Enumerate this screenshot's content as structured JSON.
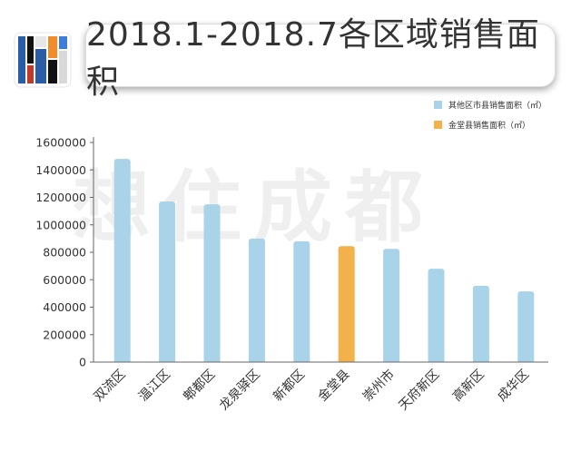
{
  "header": {
    "title": "2018.1-2018.7各区域销售面积"
  },
  "watermark": "想住成都",
  "chart_data": {
    "type": "bar",
    "title": "2018.1-2018.7各区域销售面积",
    "categories": [
      "双流区",
      "温江区",
      "郫都区",
      "龙泉驿区",
      "新都区",
      "金堂县",
      "崇州市",
      "天府新区",
      "高新区",
      "成华区"
    ],
    "values": [
      1480000,
      1170000,
      1150000,
      900000,
      880000,
      845000,
      825000,
      680000,
      555000,
      515000
    ],
    "series": [
      {
        "name": "其他区市县销售面积（㎡）",
        "color": "#a9d3e9"
      },
      {
        "name": "金堂县销售面积（㎡）",
        "color": "#f2b14a"
      }
    ],
    "highlight_category": "金堂县",
    "ylim": [
      0,
      1600000
    ],
    "yticks": [
      0,
      200000,
      400000,
      600000,
      800000,
      1000000,
      1200000,
      1400000,
      1600000
    ],
    "xlabel": "",
    "ylabel": "",
    "grid": false,
    "legend_position": "top-right"
  }
}
